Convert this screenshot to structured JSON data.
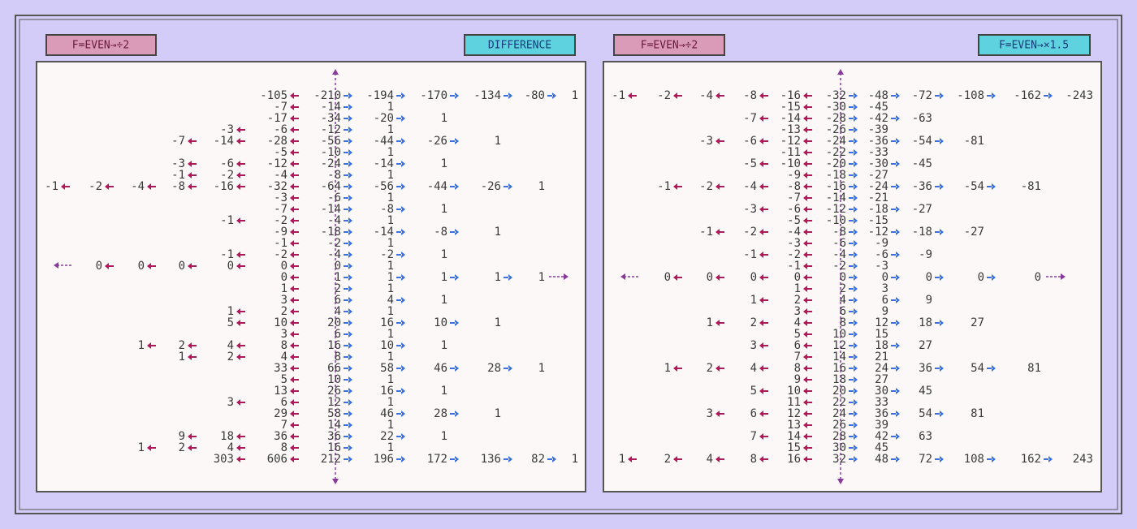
{
  "panels": [
    {
      "tags": [
        "F=EVEN→÷2",
        "DIFFERENCE"
      ],
      "rows": [
        [
          null,
          null,
          null,
          null,
          null,
          -105,
          -210,
          -194,
          -170,
          -134,
          -80,
          1
        ],
        [
          null,
          null,
          null,
          null,
          null,
          -7,
          -14,
          1,
          null,
          null,
          null,
          null
        ],
        [
          null,
          null,
          null,
          null,
          null,
          -17,
          -34,
          -20,
          1,
          null,
          null,
          null
        ],
        [
          null,
          null,
          null,
          null,
          -3,
          -6,
          -12,
          1,
          null,
          null,
          null,
          null
        ],
        [
          null,
          null,
          null,
          -7,
          -14,
          -28,
          -56,
          -44,
          -26,
          1,
          null,
          null
        ],
        [
          null,
          null,
          null,
          null,
          null,
          -5,
          -10,
          1,
          null,
          null,
          null,
          null
        ],
        [
          null,
          null,
          null,
          -3,
          -6,
          -12,
          -24,
          -14,
          1,
          null,
          null,
          null
        ],
        [
          null,
          null,
          null,
          -1,
          -2,
          -4,
          -8,
          1,
          null,
          null,
          null,
          null
        ],
        [
          -1,
          -2,
          -4,
          -8,
          -16,
          -32,
          -64,
          -56,
          -44,
          -26,
          1,
          null
        ],
        [
          null,
          null,
          null,
          null,
          null,
          -3,
          -6,
          1,
          null,
          null,
          null,
          null
        ],
        [
          null,
          null,
          null,
          null,
          null,
          -7,
          -14,
          -8,
          1,
          null,
          null,
          null
        ],
        [
          null,
          null,
          null,
          null,
          -1,
          -2,
          -4,
          1,
          null,
          null,
          null,
          null
        ],
        [
          null,
          null,
          null,
          null,
          null,
          -9,
          -18,
          -14,
          -8,
          1,
          null,
          null
        ],
        [
          null,
          null,
          null,
          null,
          null,
          -1,
          -2,
          1,
          null,
          null,
          null,
          null
        ],
        [
          null,
          null,
          null,
          null,
          -1,
          -2,
          -4,
          -2,
          1,
          null,
          null,
          null
        ],
        [
          null,
          0,
          0,
          0,
          0,
          0,
          0,
          1,
          null,
          null,
          null,
          null
        ],
        [
          null,
          null,
          null,
          null,
          null,
          0,
          1,
          1,
          1,
          1,
          1,
          null
        ],
        [
          null,
          null,
          null,
          null,
          null,
          1,
          2,
          1,
          null,
          null,
          null,
          null
        ],
        [
          null,
          null,
          null,
          null,
          null,
          3,
          6,
          4,
          1,
          null,
          null,
          null
        ],
        [
          null,
          null,
          null,
          null,
          1,
          2,
          4,
          1,
          null,
          null,
          null,
          null
        ],
        [
          null,
          null,
          null,
          null,
          5,
          10,
          20,
          16,
          10,
          1,
          null,
          null
        ],
        [
          null,
          null,
          null,
          null,
          null,
          3,
          6,
          1,
          null,
          null,
          null,
          null
        ],
        [
          null,
          null,
          1,
          2,
          4,
          8,
          16,
          10,
          1,
          null,
          null,
          null
        ],
        [
          null,
          null,
          null,
          1,
          2,
          4,
          8,
          1,
          null,
          null,
          null,
          null
        ],
        [
          null,
          null,
          null,
          null,
          null,
          33,
          66,
          58,
          46,
          28,
          1,
          null
        ],
        [
          null,
          null,
          null,
          null,
          null,
          5,
          10,
          1,
          null,
          null,
          null,
          null
        ],
        [
          null,
          null,
          null,
          null,
          null,
          13,
          26,
          16,
          1,
          null,
          null,
          null
        ],
        [
          null,
          null,
          null,
          null,
          3,
          6,
          12,
          1,
          null,
          null,
          null,
          null
        ],
        [
          null,
          null,
          null,
          null,
          null,
          29,
          58,
          46,
          28,
          1,
          null,
          null
        ],
        [
          null,
          null,
          null,
          null,
          null,
          7,
          14,
          1,
          null,
          null,
          null,
          null
        ],
        [
          null,
          null,
          null,
          9,
          18,
          36,
          36,
          22,
          1,
          null,
          null,
          null
        ],
        [
          null,
          null,
          1,
          2,
          4,
          8,
          16,
          1,
          null,
          null,
          null,
          null
        ],
        [
          null,
          null,
          null,
          null,
          303,
          606,
          212,
          196,
          172,
          136,
          82,
          1
        ]
      ]
    },
    {
      "tags": [
        "F=EVEN→÷2",
        "F=EVEN→×1.5"
      ],
      "rows": [
        [
          -1,
          -2,
          -4,
          -8,
          -16,
          -32,
          -48,
          -72,
          -108,
          -162,
          -243
        ],
        [
          null,
          null,
          null,
          null,
          -15,
          -30,
          -45,
          null,
          null,
          null,
          null
        ],
        [
          null,
          null,
          null,
          -7,
          -14,
          -28,
          -42,
          -63,
          null,
          null,
          null
        ],
        [
          null,
          null,
          null,
          null,
          -13,
          -26,
          -39,
          null,
          null,
          null,
          null
        ],
        [
          null,
          null,
          -3,
          -6,
          -12,
          -24,
          -36,
          -54,
          -81,
          null,
          null
        ],
        [
          null,
          null,
          null,
          null,
          -11,
          -22,
          -33,
          null,
          null,
          null,
          null
        ],
        [
          null,
          null,
          null,
          -5,
          -10,
          -20,
          -30,
          -45,
          null,
          null,
          null
        ],
        [
          null,
          null,
          null,
          null,
          -9,
          -18,
          -27,
          null,
          null,
          null,
          null
        ],
        [
          null,
          -1,
          -2,
          -4,
          -8,
          -16,
          -24,
          -36,
          -54,
          -81,
          null
        ],
        [
          null,
          null,
          null,
          null,
          -7,
          -14,
          -21,
          null,
          null,
          null,
          null
        ],
        [
          null,
          null,
          null,
          -3,
          -6,
          -12,
          -18,
          -27,
          null,
          null,
          null
        ],
        [
          null,
          null,
          null,
          null,
          -5,
          -10,
          -15,
          null,
          null,
          null,
          null
        ],
        [
          null,
          null,
          -1,
          -2,
          -4,
          -8,
          -12,
          -18,
          -27,
          null,
          null
        ],
        [
          null,
          null,
          null,
          null,
          -3,
          -6,
          -9,
          null,
          null,
          null,
          null
        ],
        [
          null,
          null,
          null,
          -1,
          -2,
          -4,
          -6,
          -9,
          null,
          null,
          null
        ],
        [
          null,
          null,
          null,
          null,
          -1,
          -2,
          -3,
          null,
          null,
          null,
          null
        ],
        [
          null,
          0,
          0,
          0,
          0,
          0,
          0,
          0,
          0,
          0,
          null
        ],
        [
          null,
          null,
          null,
          null,
          1,
          2,
          3,
          null,
          null,
          null,
          null
        ],
        [
          null,
          null,
          null,
          1,
          2,
          4,
          6,
          9,
          null,
          null,
          null
        ],
        [
          null,
          null,
          null,
          null,
          3,
          6,
          9,
          null,
          null,
          null,
          null
        ],
        [
          null,
          null,
          1,
          2,
          4,
          8,
          12,
          18,
          27,
          null,
          null
        ],
        [
          null,
          null,
          null,
          null,
          5,
          10,
          15,
          null,
          null,
          null,
          null
        ],
        [
          null,
          null,
          null,
          3,
          6,
          12,
          18,
          27,
          null,
          null,
          null
        ],
        [
          null,
          null,
          null,
          null,
          7,
          14,
          21,
          null,
          null,
          null,
          null
        ],
        [
          null,
          1,
          2,
          4,
          8,
          16,
          24,
          36,
          54,
          81,
          null
        ],
        [
          null,
          null,
          null,
          null,
          9,
          18,
          27,
          null,
          null,
          null,
          null
        ],
        [
          null,
          null,
          null,
          5,
          10,
          20,
          30,
          45,
          null,
          null,
          null
        ],
        [
          null,
          null,
          null,
          null,
          11,
          22,
          33,
          null,
          null,
          null,
          null
        ],
        [
          null,
          null,
          3,
          6,
          12,
          24,
          36,
          54,
          81,
          null,
          null
        ],
        [
          null,
          null,
          null,
          null,
          13,
          26,
          39,
          null,
          null,
          null,
          null
        ],
        [
          null,
          null,
          null,
          7,
          14,
          28,
          42,
          63,
          null,
          null,
          null
        ],
        [
          null,
          null,
          null,
          null,
          15,
          30,
          45,
          null,
          null,
          null,
          null
        ],
        [
          1,
          2,
          4,
          8,
          16,
          32,
          48,
          72,
          108,
          162,
          243
        ]
      ]
    }
  ]
}
